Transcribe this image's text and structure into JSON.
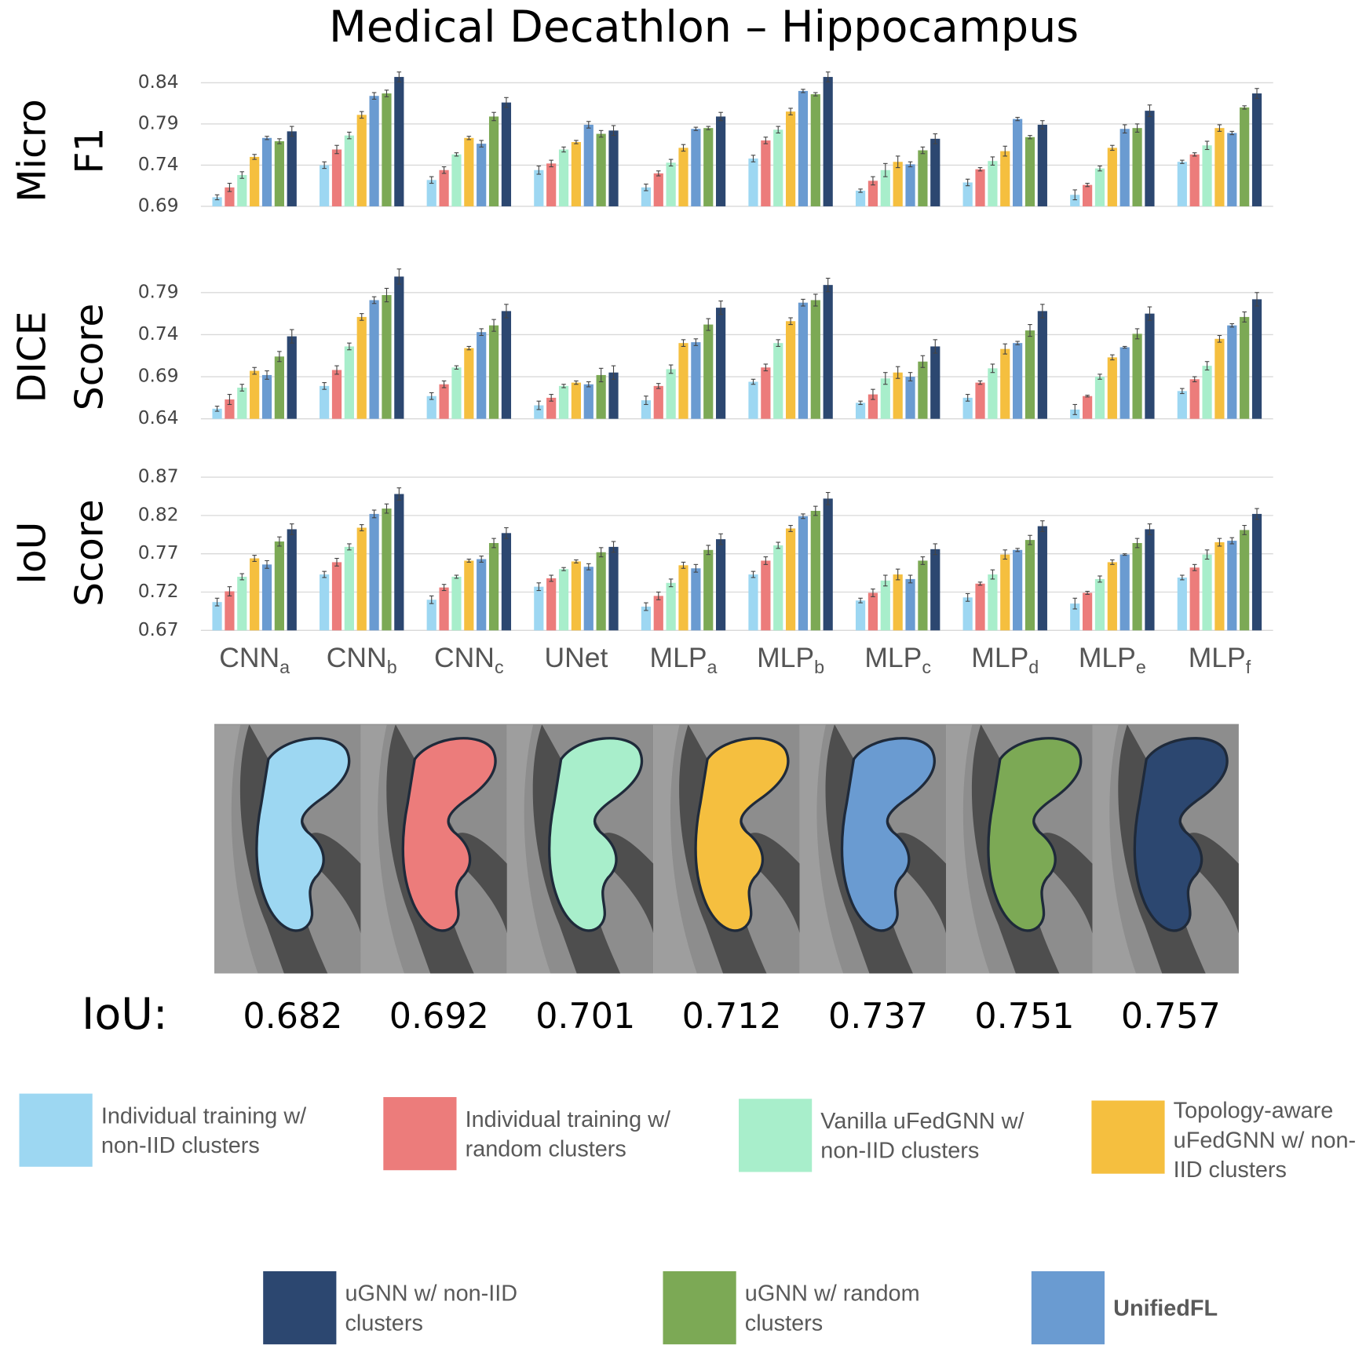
{
  "title": "Medical Decathlon – Hippocampus",
  "legend": {
    "series": [
      {
        "name": "Individual training w/ non-IID clusters",
        "color": "#9dd7f2"
      },
      {
        "name": "Individual training w/ random clusters",
        "color": "#ec7c7b"
      },
      {
        "name": "Vanilla uFedGNN w/ non-IID clusters",
        "color": "#a8eecb"
      },
      {
        "name": "Topology-aware uFedGNN w/ non-IID clusters",
        "color": "#f5bf3f"
      },
      {
        "name": "UnifiedFL",
        "color": "#6a9bd1"
      },
      {
        "name": "uGNN w/ random clusters",
        "color": "#7ca955"
      },
      {
        "name": "uGNN w/ non-IID clusters",
        "color": "#2c4770"
      }
    ]
  },
  "chart_data": [
    {
      "type": "bar",
      "ylabel": [
        "Micro",
        "F1"
      ],
      "ylim": [
        0.69,
        0.84
      ],
      "yticks": [
        0.69,
        0.74,
        0.79,
        0.84
      ],
      "grid": true,
      "series": [
        {
          "values": [
            0.701,
            0.74,
            0.722,
            0.734,
            0.713,
            0.748,
            0.709,
            0.719,
            0.704,
            0.744
          ],
          "errors": [
            0.003,
            0.004,
            0.004,
            0.005,
            0.004,
            0.004,
            0.002,
            0.004,
            0.006,
            0.002
          ]
        },
        {
          "values": [
            0.713,
            0.759,
            0.734,
            0.742,
            0.73,
            0.77,
            0.721,
            0.735,
            0.716,
            0.753
          ],
          "errors": [
            0.005,
            0.005,
            0.004,
            0.004,
            0.003,
            0.004,
            0.005,
            0.002,
            0.002,
            0.002
          ]
        },
        {
          "values": [
            0.728,
            0.776,
            0.753,
            0.759,
            0.743,
            0.783,
            0.734,
            0.745,
            0.736,
            0.764
          ],
          "errors": [
            0.004,
            0.004,
            0.002,
            0.003,
            0.004,
            0.004,
            0.008,
            0.005,
            0.003,
            0.005
          ]
        },
        {
          "values": [
            0.75,
            0.801,
            0.773,
            0.768,
            0.761,
            0.805,
            0.744,
            0.757,
            0.761,
            0.785
          ],
          "errors": [
            0.003,
            0.004,
            0.002,
            0.002,
            0.004,
            0.004,
            0.007,
            0.006,
            0.003,
            0.004
          ]
        },
        {
          "values": [
            0.773,
            0.824,
            0.766,
            0.789,
            0.784,
            0.83,
            0.741,
            0.796,
            0.784,
            0.779
          ],
          "errors": [
            0.002,
            0.004,
            0.004,
            0.004,
            0.002,
            0.002,
            0.003,
            0.002,
            0.005,
            0.002
          ]
        },
        {
          "values": [
            0.769,
            0.827,
            0.799,
            0.778,
            0.785,
            0.826,
            0.758,
            0.774,
            0.785,
            0.81
          ],
          "errors": [
            0.003,
            0.004,
            0.005,
            0.004,
            0.002,
            0.002,
            0.004,
            0.002,
            0.005,
            0.002
          ]
        },
        {
          "values": [
            0.781,
            0.847,
            0.816,
            0.782,
            0.799,
            0.847,
            0.772,
            0.789,
            0.806,
            0.827
          ],
          "errors": [
            0.006,
            0.006,
            0.006,
            0.006,
            0.005,
            0.006,
            0.006,
            0.005,
            0.007,
            0.006
          ]
        }
      ]
    },
    {
      "type": "bar",
      "ylabel": [
        "DICE",
        "Score"
      ],
      "ylim": [
        0.64,
        0.79
      ],
      "yticks": [
        0.64,
        0.69,
        0.74,
        0.79
      ],
      "grid": true,
      "series": [
        {
          "values": [
            0.652,
            0.679,
            0.667,
            0.656,
            0.662,
            0.684,
            0.659,
            0.665,
            0.651,
            0.673
          ],
          "errors": [
            0.003,
            0.004,
            0.004,
            0.005,
            0.005,
            0.003,
            0.002,
            0.004,
            0.006,
            0.003
          ]
        },
        {
          "values": [
            0.663,
            0.698,
            0.681,
            0.665,
            0.679,
            0.701,
            0.669,
            0.683,
            0.667,
            0.687
          ],
          "errors": [
            0.006,
            0.005,
            0.004,
            0.004,
            0.003,
            0.004,
            0.006,
            0.002,
            0.001,
            0.003
          ]
        },
        {
          "values": [
            0.677,
            0.726,
            0.701,
            0.679,
            0.699,
            0.73,
            0.688,
            0.7,
            0.69,
            0.703
          ],
          "errors": [
            0.004,
            0.004,
            0.002,
            0.002,
            0.005,
            0.004,
            0.007,
            0.005,
            0.003,
            0.005
          ]
        },
        {
          "values": [
            0.697,
            0.761,
            0.724,
            0.683,
            0.73,
            0.756,
            0.695,
            0.723,
            0.713,
            0.735
          ],
          "errors": [
            0.004,
            0.004,
            0.002,
            0.002,
            0.004,
            0.004,
            0.007,
            0.006,
            0.003,
            0.004
          ]
        },
        {
          "values": [
            0.692,
            0.781,
            0.743,
            0.681,
            0.731,
            0.778,
            0.69,
            0.73,
            0.725,
            0.751
          ],
          "errors": [
            0.005,
            0.004,
            0.004,
            0.003,
            0.004,
            0.004,
            0.005,
            0.002,
            0.001,
            0.002
          ]
        },
        {
          "values": [
            0.714,
            0.787,
            0.751,
            0.692,
            0.752,
            0.781,
            0.708,
            0.745,
            0.741,
            0.761
          ],
          "errors": [
            0.006,
            0.008,
            0.007,
            0.008,
            0.007,
            0.007,
            0.007,
            0.007,
            0.006,
            0.006
          ]
        },
        {
          "values": [
            0.738,
            0.809,
            0.768,
            0.695,
            0.772,
            0.799,
            0.726,
            0.768,
            0.765,
            0.782
          ],
          "errors": [
            0.008,
            0.009,
            0.008,
            0.008,
            0.008,
            0.008,
            0.008,
            0.008,
            0.008,
            0.008
          ]
        }
      ]
    },
    {
      "type": "bar",
      "ylabel": [
        "IoU",
        "Score"
      ],
      "ylim": [
        0.67,
        0.87
      ],
      "yticks": [
        0.67,
        0.72,
        0.77,
        0.82,
        0.87
      ],
      "grid": true,
      "categories": [
        "CNN",
        "CNN",
        "CNN",
        "UNet",
        "MLP",
        "MLP",
        "MLP",
        "MLP",
        "MLP",
        "MLP"
      ],
      "category_subscripts": [
        "a",
        "b",
        "c",
        null,
        "a",
        "b",
        "c",
        "d",
        "e",
        "f"
      ],
      "series": [
        {
          "values": [
            0.707,
            0.743,
            0.71,
            0.727,
            0.701,
            0.743,
            0.709,
            0.713,
            0.705,
            0.739
          ],
          "errors": [
            0.005,
            0.004,
            0.005,
            0.005,
            0.005,
            0.004,
            0.003,
            0.005,
            0.007,
            0.003
          ]
        },
        {
          "values": [
            0.721,
            0.759,
            0.726,
            0.738,
            0.715,
            0.761,
            0.719,
            0.731,
            0.719,
            0.752
          ],
          "errors": [
            0.006,
            0.005,
            0.004,
            0.004,
            0.005,
            0.005,
            0.005,
            0.002,
            0.002,
            0.004
          ]
        },
        {
          "values": [
            0.74,
            0.779,
            0.74,
            0.75,
            0.732,
            0.781,
            0.735,
            0.743,
            0.737,
            0.769
          ],
          "errors": [
            0.004,
            0.004,
            0.002,
            0.002,
            0.005,
            0.004,
            0.007,
            0.006,
            0.004,
            0.006
          ]
        },
        {
          "values": [
            0.764,
            0.804,
            0.761,
            0.76,
            0.755,
            0.803,
            0.743,
            0.769,
            0.759,
            0.785
          ],
          "errors": [
            0.004,
            0.004,
            0.002,
            0.002,
            0.004,
            0.004,
            0.007,
            0.006,
            0.003,
            0.005
          ]
        },
        {
          "values": [
            0.756,
            0.822,
            0.763,
            0.753,
            0.751,
            0.819,
            0.737,
            0.775,
            0.769,
            0.787
          ],
          "errors": [
            0.005,
            0.005,
            0.004,
            0.004,
            0.005,
            0.003,
            0.005,
            0.002,
            0.001,
            0.004
          ]
        },
        {
          "values": [
            0.786,
            0.829,
            0.784,
            0.772,
            0.775,
            0.826,
            0.761,
            0.788,
            0.784,
            0.801
          ],
          "errors": [
            0.006,
            0.006,
            0.006,
            0.006,
            0.006,
            0.006,
            0.005,
            0.006,
            0.006,
            0.006
          ]
        },
        {
          "values": [
            0.802,
            0.848,
            0.797,
            0.779,
            0.789,
            0.842,
            0.776,
            0.806,
            0.802,
            0.822
          ],
          "errors": [
            0.007,
            0.008,
            0.007,
            0.007,
            0.007,
            0.008,
            0.007,
            0.007,
            0.007,
            0.007
          ]
        }
      ]
    }
  ],
  "segmentation": {
    "label": "IoU:",
    "values": [
      0.682,
      0.692,
      0.701,
      0.712,
      0.737,
      0.751,
      0.757
    ]
  }
}
